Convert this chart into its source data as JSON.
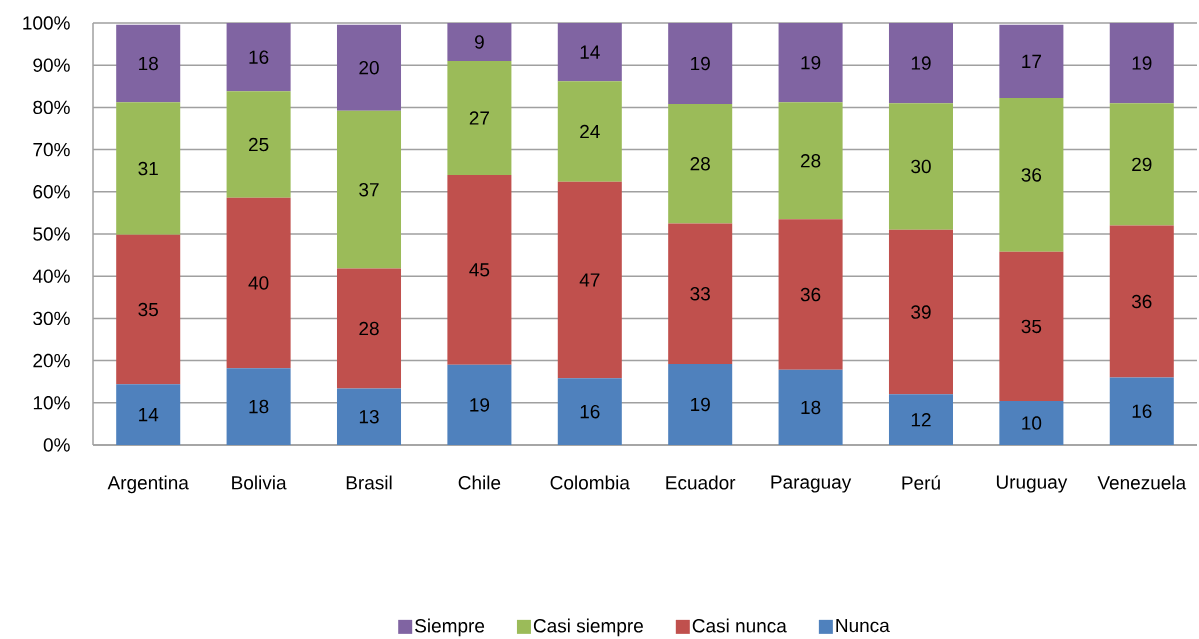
{
  "chart_data": {
    "type": "bar",
    "stacked": true,
    "categories": [
      "Argentina",
      "Bolivia",
      "Brasil",
      "Chile",
      "Colombia",
      "Ecuador",
      "Paraguay",
      "Perú",
      "Uruguay",
      "Venezuela"
    ],
    "series": [
      {
        "name": "Nunca",
        "color": "#4f81bd",
        "values": [
          14.4,
          18.2,
          13.4,
          19,
          15.8,
          19.2,
          17.8,
          12,
          10.4,
          16
        ],
        "value_labels": [
          "14",
          "18",
          "13",
          "19",
          "16",
          "19",
          "18",
          "12",
          "10",
          "16"
        ]
      },
      {
        "name": "Casi nunca",
        "color": "#c0504d",
        "values": [
          35.4,
          40.4,
          28.4,
          45,
          46.6,
          33.3,
          35.7,
          39,
          35.4,
          36
        ],
        "value_labels": [
          "35",
          "40",
          "28",
          "45",
          "47",
          "33",
          "36",
          "39",
          "35",
          "36"
        ]
      },
      {
        "name": "Casi siempre",
        "color": "#9bbb59",
        "values": [
          31.4,
          25.2,
          37.4,
          27,
          23.8,
          28.3,
          27.7,
          30,
          36.4,
          29
        ],
        "value_labels": [
          "31",
          "25",
          "37",
          "27",
          "24",
          "28",
          "28",
          "30",
          "36",
          "29"
        ]
      },
      {
        "name": "Siempre",
        "color": "#8064a2",
        "values": [
          18.4,
          16.2,
          20.4,
          9,
          13.8,
          19.2,
          18.8,
          19,
          17.4,
          19
        ],
        "value_labels": [
          "18",
          "16",
          "20",
          "9",
          "14",
          "19",
          "19",
          "19",
          "17",
          "19"
        ]
      }
    ],
    "ylim": [
      0,
      100
    ],
    "yticks": [
      {
        "value": 0,
        "label": "0%"
      },
      {
        "value": 10,
        "label": "10%"
      },
      {
        "value": 20,
        "label": "20%"
      },
      {
        "value": 30,
        "label": "30%"
      },
      {
        "value": 40,
        "label": "40%"
      },
      {
        "value": 50,
        "label": "50%"
      },
      {
        "value": 60,
        "label": "60%"
      },
      {
        "value": 70,
        "label": "70%"
      },
      {
        "value": 80,
        "label": "80%"
      },
      {
        "value": 90,
        "label": "90%"
      },
      {
        "value": 100,
        "label": "100%"
      }
    ],
    "grid": "y",
    "legend": "bottom"
  }
}
